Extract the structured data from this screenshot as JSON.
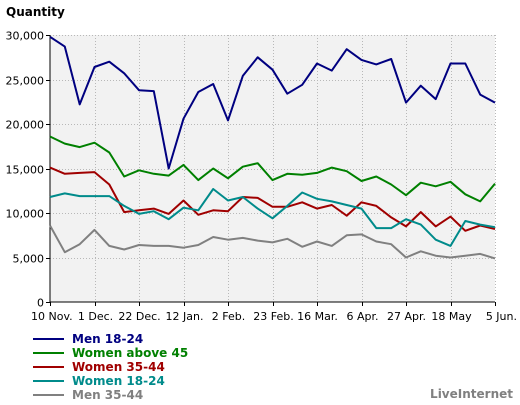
{
  "chart_data": {
    "type": "line",
    "ylabel": "Quantity",
    "ylim": [
      0,
      30000
    ],
    "y_ticks": [
      0,
      5000,
      10000,
      15000,
      20000,
      25000,
      30000
    ],
    "y_tick_labels": [
      "0",
      "5,000",
      "10,000",
      "15,000",
      "20,000",
      "25,000",
      "30,000"
    ],
    "x_tick_labels": [
      "10 Nov.",
      "1 Dec.",
      "22 Dec.",
      "12 Jan.",
      "2 Feb.",
      "23 Feb.",
      "16 Mar.",
      "6 Apr.",
      "27 Apr.",
      "18 May",
      "5 Jun."
    ],
    "x_tick_index": [
      0,
      3,
      6,
      9,
      12,
      15,
      18,
      21,
      24,
      27,
      30
    ],
    "grid": true,
    "legend_position": "bottom-left",
    "series": [
      {
        "name": "Men 18-24",
        "color": "#000080",
        "values": [
          29800,
          28700,
          22200,
          26400,
          27000,
          25700,
          23800,
          23700,
          15000,
          20600,
          23600,
          24500,
          20400,
          25400,
          27500,
          26100,
          23400,
          24400,
          26800,
          26000,
          28400,
          27200,
          26700,
          27300,
          22400,
          24300,
          22800,
          26800,
          26800,
          23300,
          22400
        ]
      },
      {
        "name": "Women above 45",
        "color": "#008000",
        "values": [
          18600,
          17800,
          17400,
          17900,
          16800,
          14100,
          14800,
          14400,
          14200,
          15400,
          13700,
          15000,
          13900,
          15200,
          15600,
          13700,
          14400,
          14300,
          14500,
          15100,
          14700,
          13600,
          14100,
          13200,
          12000,
          13400,
          13000,
          13500,
          12100,
          11300,
          13300
        ]
      },
      {
        "name": "Women 35-44",
        "color": "#a00000",
        "values": [
          15100,
          14400,
          14500,
          14600,
          13200,
          10100,
          10300,
          10500,
          9900,
          11400,
          9800,
          10300,
          10200,
          11800,
          11700,
          10700,
          10700,
          11200,
          10500,
          10900,
          9700,
          11200,
          10800,
          9500,
          8500,
          10100,
          8500,
          9600,
          8000,
          8600,
          8200
        ]
      },
      {
        "name": "Women 18-24",
        "color": "#008b8b",
        "values": [
          11800,
          12200,
          11900,
          11900,
          11900,
          10800,
          9900,
          10200,
          9300,
          10600,
          10300,
          12700,
          11400,
          11800,
          10500,
          9400,
          10800,
          12300,
          11600,
          11300,
          10900,
          10500,
          8300,
          8300,
          9300,
          8700,
          7000,
          6300,
          9100,
          8700,
          8400
        ]
      },
      {
        "name": "Men 35-44",
        "color": "#808080",
        "values": [
          8600,
          5600,
          6500,
          8100,
          6300,
          5900,
          6400,
          6300,
          6300,
          6100,
          6400,
          7300,
          7000,
          7200,
          6900,
          6700,
          7100,
          6200,
          6800,
          6300,
          7500,
          7600,
          6800,
          6500,
          5000,
          5700,
          5200,
          5000,
          5200,
          5400,
          4900
        ]
      }
    ]
  },
  "branding": {
    "watermark": "LiveInternet"
  }
}
